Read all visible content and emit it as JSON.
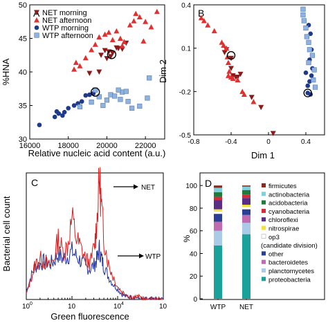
{
  "panels": {
    "A": {
      "letter": "A",
      "xlabel": "Relative nucleic acid content (a.u.)",
      "ylabel": "%HNA",
      "xticks": [
        "16000",
        "18000",
        "20000",
        "22000"
      ],
      "yticks": [
        "30",
        "35",
        "40",
        "45",
        "50"
      ],
      "legend": [
        "NET morning",
        "NET afternoon",
        "WTP morning",
        "WTP afternoon"
      ]
    },
    "B": {
      "letter": "B",
      "xlabel": "Dim 1",
      "ylabel": "Dim 2",
      "xticks": [
        "-0.8",
        "-0.4",
        "0",
        "0.4"
      ],
      "yticks": [
        "0.4",
        "0.1",
        "-0.2",
        "-0.5"
      ]
    },
    "C": {
      "letter": "C",
      "xlabel": "Green fluorescence",
      "ylabel": "Bacterial cell count",
      "xticks": [
        "10",
        "10",
        "10",
        "10"
      ],
      "xticks_exp": [
        "0",
        "",
        "4",
        ""
      ],
      "labels": [
        "NET",
        "WTP"
      ]
    },
    "D": {
      "letter": "D",
      "ylabel": "%",
      "yticks": [
        "0",
        "20",
        "40",
        "60",
        "80",
        "100"
      ],
      "xticks": [
        "WTP",
        "NET"
      ],
      "legend": [
        "firmicutes",
        "actinobacteria",
        "acidobacteria",
        "cyanobacteria",
        "chloroflexi",
        "nitrospirae",
        "op3",
        "(candidate division)",
        "other",
        "bacteroidetes",
        "planctomycetes",
        "proteobacteria"
      ]
    }
  },
  "colors": {
    "net_morning": "#8b1a1a",
    "net_afternoon": "#e03030",
    "wtp_morning": "#1f3a8a",
    "wtp_afternoon": "#8fb3e0",
    "hist_net": "#d42020",
    "hist_wtp": "#2030a0"
  },
  "chart_data": [
    {
      "type": "scatter",
      "xlabel": "Relative nucleic acid content (a.u.)",
      "ylabel": "%HNA",
      "xlim": [
        16000,
        23000
      ],
      "ylim": [
        30,
        50
      ],
      "series": [
        {
          "name": "NET morning",
          "points": [
            [
              19700,
              42.5
            ],
            [
              19900,
              43.2
            ],
            [
              20000,
              42.0
            ],
            [
              20100,
              43.0
            ],
            [
              20200,
              42.3
            ],
            [
              20300,
              42.8
            ],
            [
              20500,
              43.6
            ],
            [
              20600,
              43.5
            ],
            [
              20800,
              43.4
            ],
            [
              21000,
              44.3
            ],
            [
              19600,
              40.0
            ],
            [
              19100,
              39.8
            ]
          ]
        },
        {
          "name": "NET afternoon",
          "points": [
            [
              18300,
              40.4
            ],
            [
              18400,
              41.4
            ],
            [
              18600,
              40.9
            ],
            [
              18900,
              42.1
            ],
            [
              19200,
              43.3
            ],
            [
              19400,
              44.1
            ],
            [
              19600,
              45.2
            ],
            [
              19900,
              45.6
            ],
            [
              20100,
              45.9
            ],
            [
              20300,
              44.8
            ],
            [
              20500,
              46.1
            ],
            [
              20700,
              45.0
            ],
            [
              20900,
              44.5
            ],
            [
              21200,
              47.0
            ],
            [
              21400,
              47.6
            ],
            [
              21700,
              48.2
            ],
            [
              22000,
              47.5
            ],
            [
              22300,
              46.7
            ],
            [
              22600,
              49.0
            ],
            [
              21500,
              48.7
            ],
            [
              20800,
              43.9
            ],
            [
              21900,
              44.6
            ]
          ]
        },
        {
          "name": "WTP morning",
          "points": [
            [
              16500,
              32.1
            ],
            [
              17300,
              33.3
            ],
            [
              17500,
              33.8
            ],
            [
              17700,
              33.5
            ],
            [
              17800,
              34.0
            ],
            [
              18000,
              34.6
            ],
            [
              18300,
              35.0
            ],
            [
              18500,
              35.3
            ],
            [
              18700,
              35.6
            ],
            [
              18900,
              36.5
            ],
            [
              19100,
              36.6
            ],
            [
              19300,
              36.8
            ],
            [
              17400,
              34.1
            ]
          ]
        },
        {
          "name": "WTP afternoon",
          "points": [
            [
              19400,
              37.3
            ],
            [
              19600,
              36.3
            ],
            [
              19800,
              35.0
            ],
            [
              20000,
              35.8
            ],
            [
              20200,
              36.6
            ],
            [
              20400,
              36.4
            ],
            [
              20700,
              35.9
            ],
            [
              20800,
              37.0
            ],
            [
              21000,
              37.1
            ],
            [
              21100,
              35.6
            ],
            [
              21300,
              34.6
            ],
            [
              21700,
              34.9
            ],
            [
              22100,
              36.1
            ],
            [
              22200,
              39.1
            ],
            [
              20600,
              37.3
            ],
            [
              19200,
              35.5
            ],
            [
              18600,
              34.8
            ]
          ]
        }
      ]
    },
    {
      "type": "scatter",
      "xlabel": "Dim 1",
      "ylabel": "Dim 2",
      "xlim": [
        -0.8,
        0.6
      ],
      "ylim": [
        -0.5,
        0.4
      ],
      "series": [
        {
          "name": "NET morning",
          "points": [
            [
              -0.45,
              0.09
            ],
            [
              -0.47,
              0.07
            ],
            [
              -0.4,
              -0.04
            ],
            [
              -0.38,
              -0.09
            ],
            [
              -0.35,
              -0.1
            ],
            [
              -0.33,
              -0.1
            ],
            [
              -0.3,
              -0.08
            ],
            [
              -0.18,
              -0.24
            ],
            [
              -0.08,
              -0.31
            ],
            [
              0.05,
              -0.49
            ],
            [
              -0.4,
              0.03
            ]
          ]
        },
        {
          "name": "NET afternoon",
          "points": [
            [
              -0.72,
              0.31
            ],
            [
              -0.69,
              0.29
            ],
            [
              -0.65,
              0.26
            ],
            [
              -0.58,
              0.22
            ],
            [
              -0.5,
              0.14
            ],
            [
              -0.48,
              0.12
            ],
            [
              -0.45,
              0.1
            ],
            [
              -0.44,
              0.04
            ],
            [
              -0.43,
              0.0
            ],
            [
              -0.42,
              -0.06
            ],
            [
              -0.4,
              -0.1
            ],
            [
              -0.38,
              -0.11
            ],
            [
              -0.33,
              -0.12
            ],
            [
              -0.28,
              -0.2
            ],
            [
              -0.26,
              -0.22
            ],
            [
              -0.16,
              -0.27
            ],
            [
              -0.43,
              -0.09
            ]
          ]
        },
        {
          "name": "WTP morning",
          "points": [
            [
              0.43,
              0.26
            ],
            [
              0.45,
              0.2
            ],
            [
              0.46,
              0.09
            ],
            [
              0.44,
              0.02
            ],
            [
              0.47,
              -0.04
            ],
            [
              0.46,
              -0.09
            ],
            [
              0.44,
              -0.13
            ],
            [
              0.42,
              -0.16
            ],
            [
              0.42,
              -0.21
            ],
            [
              0.45,
              -0.22
            ],
            [
              0.4,
              -0.07
            ]
          ]
        },
        {
          "name": "WTP afternoon",
          "points": [
            [
              0.37,
              0.37
            ],
            [
              0.37,
              0.33
            ],
            [
              0.38,
              0.29
            ],
            [
              0.4,
              0.24
            ],
            [
              0.41,
              0.18
            ],
            [
              0.43,
              0.14
            ],
            [
              0.44,
              0.09
            ],
            [
              0.47,
              0.05
            ],
            [
              0.49,
              -0.05
            ],
            [
              0.48,
              -0.12
            ],
            [
              0.5,
              -0.17
            ],
            [
              0.43,
              0.0
            ]
          ]
        }
      ]
    },
    {
      "type": "line",
      "xlabel": "Green fluorescence",
      "ylabel": "Bacterial cell count",
      "xscale": "log",
      "xlim": [
        1000,
        1000000
      ],
      "series": [
        {
          "name": "NET",
          "x_log10": [
            3.0,
            3.1,
            3.2,
            3.3,
            3.4,
            3.5,
            3.6,
            3.7,
            3.8,
            3.9,
            4.0,
            4.1,
            4.2,
            4.3,
            4.4,
            4.5,
            4.55,
            4.6,
            4.65,
            4.7,
            4.8,
            4.9,
            5.0,
            5.1,
            5.2,
            5.3,
            5.4,
            5.5,
            5.6,
            5.7,
            5.8,
            5.9,
            6.0
          ],
          "y": [
            2,
            8,
            14,
            16,
            15,
            13,
            16,
            24,
            19,
            21,
            32,
            24,
            20,
            16,
            14,
            22,
            32,
            48,
            36,
            24,
            14,
            9,
            5,
            3,
            2,
            1,
            1,
            1,
            0,
            0,
            0,
            0,
            0
          ]
        },
        {
          "name": "WTP",
          "x_log10": [
            3.0,
            3.1,
            3.2,
            3.3,
            3.4,
            3.5,
            3.6,
            3.7,
            3.8,
            3.9,
            4.0,
            4.1,
            4.2,
            4.3,
            4.4,
            4.5,
            4.55,
            4.6,
            4.65,
            4.7,
            4.8,
            4.9,
            5.0,
            5.1,
            5.2,
            5.3,
            5.4,
            5.5,
            5.6,
            5.7,
            5.8,
            5.9,
            6.0
          ],
          "y": [
            3,
            9,
            13,
            14,
            15,
            14,
            15,
            18,
            16,
            17,
            19,
            17,
            15,
            13,
            12,
            14,
            16,
            20,
            16,
            13,
            9,
            6,
            4,
            2,
            1,
            1,
            1,
            0,
            0,
            0,
            0,
            0,
            0
          ]
        }
      ]
    },
    {
      "type": "bar",
      "stacked": true,
      "ylabel": "%",
      "ylim": [
        0,
        100
      ],
      "categories": [
        "WTP",
        "NET"
      ],
      "series": [
        {
          "name": "proteobacteria",
          "color": "#1aa29a",
          "values": [
            47,
            57
          ]
        },
        {
          "name": "planctomycetes",
          "color": "#a9cbe8",
          "values": [
            13,
            10
          ]
        },
        {
          "name": "bacteroidetes",
          "color": "#c06ab0",
          "values": [
            8,
            7
          ]
        },
        {
          "name": "other",
          "color": "#2a3e98",
          "values": [
            7,
            5
          ]
        },
        {
          "name": "op3 (candidate division)",
          "color": "#ffffff",
          "values": [
            2,
            2
          ]
        },
        {
          "name": "nitrospirae",
          "color": "#f3e23a",
          "values": [
            2,
            2
          ]
        },
        {
          "name": "chloroflexi",
          "color": "#5a2e86",
          "values": [
            8,
            6
          ]
        },
        {
          "name": "cyanobacteria",
          "color": "#d42a3a",
          "values": [
            3,
            3
          ]
        },
        {
          "name": "acidobacteria",
          "color": "#1f7a3c",
          "values": [
            4,
            4
          ]
        },
        {
          "name": "actinobacteria",
          "color": "#7fd0dc",
          "values": [
            4,
            3
          ]
        },
        {
          "name": "firmicutes",
          "color": "#8b2a1a",
          "values": [
            2,
            1
          ]
        }
      ]
    }
  ]
}
